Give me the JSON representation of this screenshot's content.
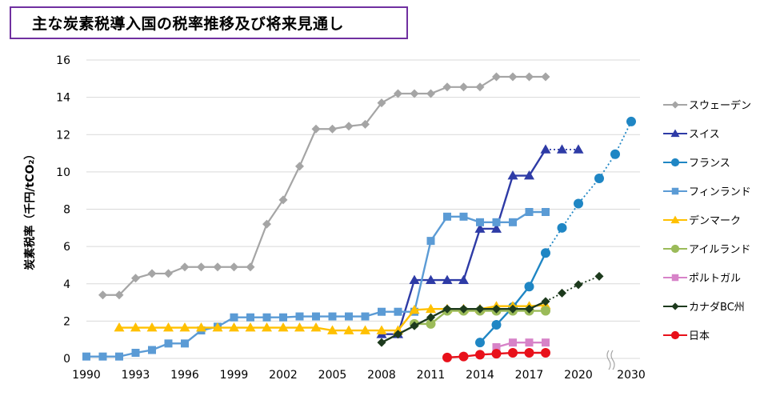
{
  "header": {
    "title": "主な炭素税導入国の税率推移及び将来見通し"
  },
  "colors": {
    "sweden": "#a5a5a5",
    "swiss": "#2e3ba6",
    "france": "#1f86c4",
    "finland": "#5b9bd5",
    "denmark": "#ffc000",
    "ireland": "#9bbb59",
    "portugal": "#d783c8",
    "canada_bc": "#1d3a1d",
    "japan": "#e8101a",
    "title_border": "#7030a0"
  },
  "chart_data": {
    "type": "line",
    "title": "主な炭素税導入国の税率推移及び将来見通し",
    "xlabel": "",
    "ylabel": "炭素税率（千円/tCO₂）",
    "ylim": [
      0,
      16
    ],
    "yticks": [
      0,
      2,
      4,
      6,
      8,
      10,
      12,
      14,
      16
    ],
    "xticks": [
      1990,
      1993,
      1996,
      1999,
      2002,
      2005,
      2008,
      2011,
      2014,
      2017,
      2020,
      2030
    ],
    "axis_break": "between 2020 and 2030",
    "grid": true,
    "legend_position": "right",
    "series": [
      {
        "name": "スウェーデン",
        "marker": "diamond",
        "color_key": "sweden",
        "points": [
          [
            1991,
            3.4
          ],
          [
            1992,
            3.4
          ],
          [
            1993,
            4.3
          ],
          [
            1994,
            4.55
          ],
          [
            1995,
            4.55
          ],
          [
            1996,
            4.9
          ],
          [
            1997,
            4.9
          ],
          [
            1998,
            4.9
          ],
          [
            1999,
            4.9
          ],
          [
            2000,
            4.9
          ],
          [
            2001,
            7.2
          ],
          [
            2002,
            8.5
          ],
          [
            2003,
            10.3
          ],
          [
            2004,
            12.3
          ],
          [
            2005,
            12.3
          ],
          [
            2006,
            12.45
          ],
          [
            2007,
            12.55
          ],
          [
            2008,
            13.7
          ],
          [
            2009,
            14.2
          ],
          [
            2010,
            14.2
          ],
          [
            2011,
            14.2
          ],
          [
            2012,
            14.55
          ],
          [
            2013,
            14.55
          ],
          [
            2014,
            14.55
          ],
          [
            2015,
            15.1
          ],
          [
            2016,
            15.1
          ],
          [
            2017,
            15.1
          ],
          [
            2018,
            15.1
          ]
        ]
      },
      {
        "name": "スイス",
        "marker": "triangle",
        "color_key": "swiss",
        "points": [
          [
            2008,
            1.3
          ],
          [
            2009,
            1.3
          ],
          [
            2010,
            4.2
          ],
          [
            2011,
            4.2
          ],
          [
            2012,
            4.2
          ],
          [
            2013,
            4.2
          ],
          [
            2014,
            6.95
          ],
          [
            2015,
            6.95
          ],
          [
            2016,
            9.8
          ],
          [
            2017,
            9.8
          ],
          [
            2018,
            11.2
          ],
          [
            2019,
            11.2
          ],
          [
            2020,
            11.2
          ]
        ],
        "projection_from": 2018
      },
      {
        "name": "フランス",
        "marker": "circle",
        "color_key": "france",
        "points": [
          [
            2014,
            0.85
          ],
          [
            2015,
            1.8
          ],
          [
            2016,
            2.75
          ],
          [
            2017,
            3.85
          ],
          [
            2018,
            5.65
          ],
          [
            2019,
            7.0
          ],
          [
            2020,
            8.3
          ],
          [
            2021,
            9.65
          ],
          [
            2022,
            10.95
          ],
          [
            2030,
            12.7
          ]
        ],
        "projection_from": 2018
      },
      {
        "name": "フィンランド",
        "marker": "square",
        "color_key": "finland",
        "points": [
          [
            1990,
            0.1
          ],
          [
            1991,
            0.1
          ],
          [
            1992,
            0.1
          ],
          [
            1993,
            0.3
          ],
          [
            1994,
            0.45
          ],
          [
            1995,
            0.8
          ],
          [
            1996,
            0.8
          ],
          [
            1997,
            1.5
          ],
          [
            1998,
            1.7
          ],
          [
            1999,
            2.2
          ],
          [
            2000,
            2.2
          ],
          [
            2001,
            2.2
          ],
          [
            2002,
            2.2
          ],
          [
            2003,
            2.25
          ],
          [
            2004,
            2.25
          ],
          [
            2005,
            2.25
          ],
          [
            2006,
            2.25
          ],
          [
            2007,
            2.25
          ],
          [
            2008,
            2.5
          ],
          [
            2009,
            2.5
          ],
          [
            2010,
            2.5
          ],
          [
            2011,
            6.3
          ],
          [
            2012,
            7.6
          ],
          [
            2013,
            7.6
          ],
          [
            2014,
            7.3
          ],
          [
            2015,
            7.3
          ],
          [
            2016,
            7.3
          ],
          [
            2017,
            7.85
          ],
          [
            2018,
            7.85
          ]
        ]
      },
      {
        "name": "デンマーク",
        "marker": "triangle",
        "color_key": "denmark",
        "points": [
          [
            1992,
            1.65
          ],
          [
            1993,
            1.65
          ],
          [
            1994,
            1.65
          ],
          [
            1995,
            1.65
          ],
          [
            1996,
            1.65
          ],
          [
            1997,
            1.65
          ],
          [
            1998,
            1.65
          ],
          [
            1999,
            1.65
          ],
          [
            2000,
            1.65
          ],
          [
            2001,
            1.65
          ],
          [
            2002,
            1.65
          ],
          [
            2003,
            1.65
          ],
          [
            2004,
            1.65
          ],
          [
            2005,
            1.5
          ],
          [
            2006,
            1.5
          ],
          [
            2007,
            1.5
          ],
          [
            2008,
            1.5
          ],
          [
            2009,
            1.5
          ],
          [
            2010,
            2.6
          ],
          [
            2011,
            2.65
          ],
          [
            2012,
            2.65
          ],
          [
            2013,
            2.65
          ],
          [
            2014,
            2.65
          ],
          [
            2015,
            2.8
          ],
          [
            2016,
            2.8
          ],
          [
            2017,
            2.8
          ],
          [
            2018,
            2.85
          ]
        ]
      },
      {
        "name": "アイルランド",
        "marker": "circle",
        "color_key": "ireland",
        "points": [
          [
            2010,
            1.85
          ],
          [
            2011,
            1.85
          ],
          [
            2012,
            2.55
          ],
          [
            2013,
            2.55
          ],
          [
            2014,
            2.55
          ],
          [
            2015,
            2.55
          ],
          [
            2016,
            2.55
          ],
          [
            2017,
            2.55
          ],
          [
            2018,
            2.55
          ]
        ]
      },
      {
        "name": "ポルトガル",
        "marker": "square",
        "color_key": "portugal",
        "points": [
          [
            2015,
            0.6
          ],
          [
            2016,
            0.85
          ],
          [
            2017,
            0.85
          ],
          [
            2018,
            0.85
          ]
        ]
      },
      {
        "name": "カナダBC州",
        "marker": "diamond",
        "color_key": "canada_bc",
        "points": [
          [
            2008,
            0.85
          ],
          [
            2009,
            1.3
          ],
          [
            2010,
            1.75
          ],
          [
            2011,
            2.2
          ],
          [
            2012,
            2.65
          ],
          [
            2013,
            2.65
          ],
          [
            2014,
            2.65
          ],
          [
            2015,
            2.65
          ],
          [
            2016,
            2.65
          ],
          [
            2017,
            2.65
          ],
          [
            2018,
            3.05
          ],
          [
            2019,
            3.5
          ],
          [
            2020,
            3.95
          ],
          [
            2021,
            4.4
          ]
        ],
        "projection_from": 2018
      },
      {
        "name": "日本",
        "marker": "circle",
        "color_key": "japan",
        "points": [
          [
            2012,
            0.05
          ],
          [
            2013,
            0.1
          ],
          [
            2014,
            0.2
          ],
          [
            2015,
            0.25
          ],
          [
            2016,
            0.3
          ],
          [
            2017,
            0.3
          ],
          [
            2018,
            0.3
          ]
        ]
      }
    ]
  }
}
